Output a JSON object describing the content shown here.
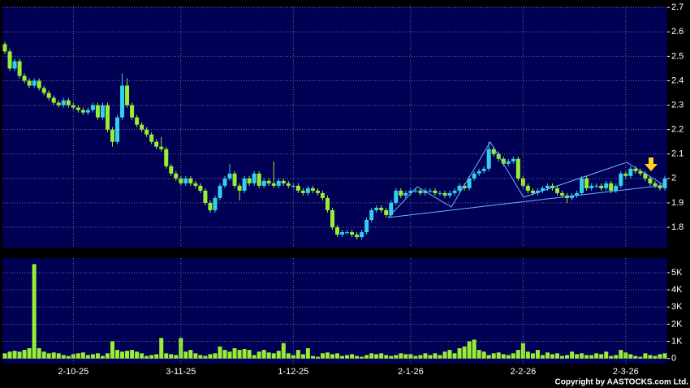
{
  "chart_data": [
    {
      "type": "candlestick",
      "open": [
        2.55,
        2.52,
        2.45,
        2.48,
        2.42,
        2.4,
        2.38,
        2.4,
        2.37,
        2.35,
        2.33,
        2.31,
        2.3,
        2.32,
        2.3,
        2.29,
        2.28,
        2.27,
        2.28,
        2.3,
        2.25,
        2.3,
        2.2,
        2.15,
        2.25,
        2.38,
        2.3,
        2.25,
        2.22,
        2.2,
        2.18,
        2.15,
        2.13,
        2.12,
        2.05,
        2.02,
        2.0,
        1.98,
        2.0,
        1.98,
        1.97,
        1.95,
        1.9,
        1.87,
        1.92,
        1.97,
        2.0,
        2.02,
        1.97,
        1.95,
        2.0,
        1.98,
        2.02,
        1.97,
        1.99,
        1.98,
        1.97,
        1.99,
        1.98,
        1.97,
        1.97,
        1.95,
        1.94,
        1.96,
        1.95,
        1.94,
        1.92,
        1.87,
        1.8,
        1.77,
        1.78,
        1.78,
        1.77,
        1.76,
        1.78,
        1.83,
        1.87,
        1.88,
        1.87,
        1.85,
        1.9,
        1.95,
        1.93,
        1.94,
        1.95,
        1.95,
        1.94,
        1.95,
        1.95,
        1.94,
        1.94,
        1.93,
        1.94,
        1.95,
        1.97,
        1.96,
        2.0,
        2.02,
        2.03,
        2.04,
        2.12,
        2.1,
        2.08,
        2.06,
        2.07,
        2.08,
        2.0,
        1.97,
        1.95,
        1.94,
        1.95,
        1.96,
        1.97,
        1.96,
        1.94,
        1.93,
        1.92,
        1.93,
        1.94,
        2.0,
        1.96,
        1.97,
        1.97,
        1.96,
        1.98,
        1.95,
        1.97,
        2.02,
        2.01,
        2.04,
        2.03,
        2.02,
        2.0,
        1.98,
        1.97,
        1.96
      ],
      "high": [
        2.56,
        2.53,
        2.49,
        2.49,
        2.43,
        2.41,
        2.41,
        2.41,
        2.38,
        2.36,
        2.34,
        2.32,
        2.33,
        2.33,
        2.31,
        2.3,
        2.29,
        2.29,
        2.31,
        2.31,
        2.31,
        2.31,
        2.21,
        2.26,
        2.43,
        2.41,
        2.31,
        2.26,
        2.23,
        2.21,
        2.19,
        2.16,
        2.17,
        2.13,
        2.06,
        2.03,
        2.01,
        2.01,
        2.01,
        1.99,
        1.98,
        1.96,
        1.91,
        1.93,
        1.98,
        2.01,
        2.06,
        2.03,
        1.98,
        2.01,
        2.01,
        2.03,
        2.03,
        2.0,
        2.0,
        2.07,
        2.0,
        2.0,
        1.99,
        1.98,
        1.98,
        1.96,
        1.97,
        1.97,
        1.96,
        1.95,
        1.93,
        1.88,
        1.81,
        1.79,
        1.79,
        1.79,
        1.78,
        1.79,
        1.84,
        1.88,
        1.89,
        1.89,
        1.88,
        1.91,
        1.96,
        1.96,
        1.95,
        1.96,
        1.96,
        1.96,
        1.96,
        1.96,
        1.96,
        1.95,
        1.95,
        1.95,
        1.96,
        1.98,
        1.98,
        2.01,
        2.03,
        2.04,
        2.05,
        2.15,
        2.13,
        2.11,
        2.09,
        2.08,
        2.09,
        2.09,
        2.01,
        1.98,
        1.96,
        1.96,
        1.97,
        1.98,
        1.98,
        1.97,
        1.95,
        1.94,
        1.94,
        1.95,
        2.01,
        2.01,
        1.98,
        1.98,
        1.98,
        1.99,
        1.99,
        1.98,
        2.03,
        2.03,
        2.05,
        2.05,
        2.04,
        2.03,
        2.01,
        1.99,
        1.98,
        2.01
      ],
      "low": [
        2.51,
        2.44,
        2.44,
        2.41,
        2.39,
        2.37,
        2.37,
        2.36,
        2.34,
        2.32,
        2.3,
        2.29,
        2.29,
        2.29,
        2.28,
        2.27,
        2.26,
        2.26,
        2.27,
        2.24,
        2.24,
        2.19,
        2.13,
        2.14,
        2.24,
        2.29,
        2.24,
        2.21,
        2.19,
        2.17,
        2.14,
        2.12,
        2.11,
        2.04,
        2.01,
        1.99,
        1.97,
        1.97,
        1.97,
        1.96,
        1.94,
        1.89,
        1.86,
        1.86,
        1.91,
        1.96,
        1.99,
        1.96,
        1.91,
        1.94,
        1.97,
        1.97,
        1.96,
        1.96,
        1.97,
        1.96,
        1.96,
        1.97,
        1.96,
        1.96,
        1.94,
        1.93,
        1.93,
        1.94,
        1.93,
        1.91,
        1.86,
        1.79,
        1.76,
        1.76,
        1.77,
        1.76,
        1.75,
        1.75,
        1.77,
        1.82,
        1.86,
        1.86,
        1.84,
        1.84,
        1.89,
        1.92,
        1.92,
        1.93,
        1.94,
        1.93,
        1.93,
        1.94,
        1.93,
        1.93,
        1.92,
        1.92,
        1.93,
        1.94,
        1.95,
        1.95,
        1.99,
        2.01,
        2.02,
        2.03,
        2.09,
        2.07,
        2.05,
        2.05,
        2.06,
        1.99,
        1.96,
        1.94,
        1.93,
        1.93,
        1.94,
        1.95,
        1.95,
        1.93,
        1.92,
        1.9,
        1.91,
        1.92,
        1.93,
        1.95,
        1.95,
        1.96,
        1.95,
        1.95,
        1.94,
        1.94,
        1.96,
        2.0,
        2.0,
        2.02,
        2.01,
        1.99,
        1.97,
        1.96,
        1.95,
        1.95
      ],
      "close": [
        2.52,
        2.45,
        2.48,
        2.42,
        2.4,
        2.38,
        2.4,
        2.37,
        2.35,
        2.33,
        2.31,
        2.3,
        2.32,
        2.3,
        2.29,
        2.28,
        2.27,
        2.28,
        2.3,
        2.25,
        2.3,
        2.2,
        2.15,
        2.25,
        2.38,
        2.3,
        2.25,
        2.22,
        2.2,
        2.18,
        2.15,
        2.13,
        2.12,
        2.05,
        2.02,
        2.0,
        1.98,
        2.0,
        1.98,
        1.97,
        1.95,
        1.9,
        1.87,
        1.92,
        1.97,
        2.0,
        2.02,
        1.97,
        1.95,
        2.0,
        1.98,
        2.02,
        1.97,
        1.99,
        1.98,
        1.97,
        1.99,
        1.98,
        1.97,
        1.97,
        1.95,
        1.94,
        1.96,
        1.95,
        1.94,
        1.92,
        1.87,
        1.8,
        1.77,
        1.78,
        1.78,
        1.77,
        1.76,
        1.78,
        1.83,
        1.87,
        1.88,
        1.87,
        1.85,
        1.9,
        1.95,
        1.93,
        1.94,
        1.95,
        1.95,
        1.94,
        1.95,
        1.95,
        1.94,
        1.94,
        1.93,
        1.94,
        1.95,
        1.97,
        1.96,
        2.0,
        2.02,
        2.03,
        2.04,
        2.12,
        2.1,
        2.08,
        2.06,
        2.07,
        2.08,
        2.0,
        1.97,
        1.95,
        1.94,
        1.95,
        1.96,
        1.97,
        1.96,
        1.94,
        1.93,
        1.92,
        1.93,
        1.94,
        2.0,
        1.96,
        1.97,
        1.97,
        1.96,
        1.98,
        1.95,
        1.97,
        2.02,
        2.01,
        2.04,
        2.03,
        2.02,
        2.0,
        1.98,
        1.97,
        1.96,
        2.0
      ],
      "up_color": "#33d0ee",
      "down_color": "#99ee33",
      "ylim": [
        1.717,
        2.704
      ],
      "yticks": [
        1.8,
        1.9,
        2,
        2.1,
        2.2,
        2.3,
        2.4,
        2.5,
        2.6,
        2.7
      ],
      "grid": true
    },
    {
      "type": "bar",
      "categories": [
        null,
        null,
        null,
        null,
        null,
        null,
        null,
        null,
        null,
        null,
        null,
        null,
        null,
        null,
        "2-10-25",
        null,
        null,
        null,
        null,
        null,
        null,
        null,
        null,
        null,
        null,
        null,
        null,
        null,
        null,
        null,
        null,
        null,
        null,
        null,
        null,
        null,
        "3-11-25",
        null,
        null,
        null,
        null,
        null,
        null,
        null,
        null,
        null,
        null,
        null,
        null,
        null,
        null,
        null,
        null,
        null,
        null,
        null,
        null,
        null,
        null,
        "1-12-25",
        null,
        null,
        null,
        null,
        null,
        null,
        null,
        null,
        null,
        null,
        null,
        null,
        null,
        null,
        null,
        null,
        null,
        null,
        null,
        null,
        null,
        null,
        null,
        "2-1-26",
        null,
        null,
        null,
        null,
        null,
        null,
        null,
        null,
        null,
        null,
        null,
        null,
        null,
        null,
        null,
        null,
        null,
        null,
        null,
        null,
        null,
        null,
        "2-2-26",
        null,
        null,
        null,
        null,
        null,
        null,
        null,
        null,
        null,
        null,
        null,
        null,
        null,
        null,
        null,
        null,
        null,
        null,
        null,
        null,
        "2-3-26",
        null,
        null,
        null,
        null,
        null,
        null,
        null,
        null
      ],
      "values": [
        300,
        400,
        450,
        400,
        500,
        600,
        5500,
        600,
        400,
        300,
        350,
        300,
        200,
        150,
        250,
        300,
        350,
        200,
        250,
        300,
        150,
        300,
        1000,
        500,
        400,
        450,
        500,
        400,
        300,
        150,
        200,
        250,
        1200,
        300,
        250,
        200,
        1200,
        400,
        500,
        300,
        200,
        150,
        250,
        300,
        700,
        500,
        400,
        600,
        500,
        550,
        500,
        200,
        400,
        500,
        350,
        300,
        450,
        900,
        300,
        200,
        500,
        250,
        600,
        150,
        100,
        300,
        350,
        250,
        300,
        150,
        200,
        250,
        150,
        100,
        200,
        300,
        250,
        300,
        200,
        150,
        200,
        300,
        250,
        250,
        150,
        200,
        300,
        200,
        300,
        200,
        400,
        500,
        300,
        600,
        700,
        1000,
        1100,
        500,
        400,
        200,
        300,
        350,
        250,
        200,
        300,
        500,
        900,
        400,
        300,
        500,
        200,
        350,
        250,
        300,
        150,
        200,
        400,
        250,
        300,
        200,
        200,
        300,
        250,
        400,
        150,
        200,
        500,
        350,
        250,
        150,
        100,
        300,
        200,
        150,
        250,
        300
      ],
      "color": "#99ee33",
      "ylim": [
        -300,
        5850
      ],
      "yticks": [
        0,
        {
          "value": 1000,
          "label": "1K"
        },
        {
          "value": 2000,
          "label": "2K"
        },
        {
          "value": 3000,
          "label": "3K"
        },
        {
          "value": 4000,
          "label": "4K"
        },
        {
          "value": 5000,
          "label": "5K"
        }
      ],
      "grid": true
    }
  ],
  "copyright": "Copyright by AASTOCKS.com Ltd."
}
